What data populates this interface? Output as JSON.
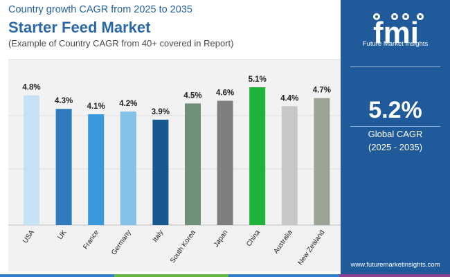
{
  "header": {
    "subtitle_top": "Country growth CAGR from 2025 to 2035",
    "title": "Starter Feed Market",
    "note": "(Example of Country CAGR from 40+ covered in Report)"
  },
  "sidebar": {
    "logo_letters": "fmi",
    "logo_name": "Future Market Insights",
    "global_value": "5.2%",
    "global_label": "Global CAGR",
    "global_range": "(2025 - 2035)",
    "website": "www.futuremarketinsights.com"
  },
  "colors": {
    "title": "#2b68aa",
    "sidebar_bg": "#1f5b9b",
    "plot_bg": "#f2f2f2",
    "bottom_bar": [
      "#2f7fcf",
      "#65b83f",
      "#2f7fcf",
      "#8a3f8f"
    ]
  },
  "chart_data": {
    "type": "bar",
    "title": "Starter Feed Market",
    "xlabel": "",
    "ylabel": "",
    "ylim": [
      0,
      5.1
    ],
    "grid": true,
    "categories": [
      "USA",
      "UK",
      "France",
      "Germany",
      "Italy",
      "South Korea",
      "Japan",
      "China",
      "Australia",
      "New Zealand"
    ],
    "values": [
      4.8,
      4.3,
      4.1,
      4.2,
      3.9,
      4.5,
      4.6,
      5.1,
      4.4,
      4.7
    ],
    "labels": [
      "4.8%",
      "4.3%",
      "4.1%",
      "4.2%",
      "3.9%",
      "4.5%",
      "4.6%",
      "5.1%",
      "4.4%",
      "4.7%"
    ],
    "colors": [
      "#c5e3f5",
      "#2f7bbd",
      "#3a98dc",
      "#84c1e6",
      "#17588f",
      "#6f8f76",
      "#7f7f7f",
      "#1fb33a",
      "#c7c7c7",
      "#9aa396"
    ]
  }
}
